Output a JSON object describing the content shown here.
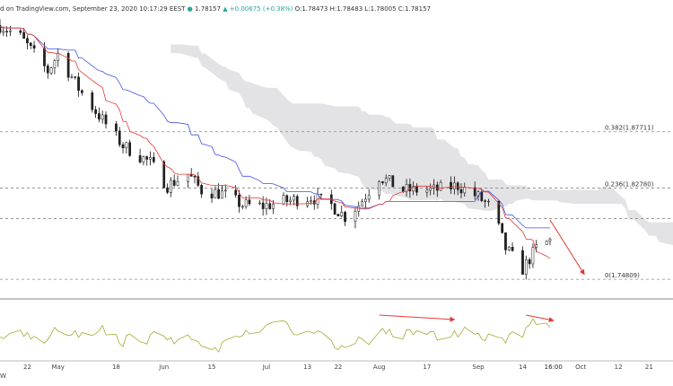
{
  "header": {
    "prefix": "d on TradingView.com, September 23, 2020 10:17:29 EEST",
    "symbol_glyph": "●",
    "price": "1.78157",
    "change": "▲ +0.00675 (+0.38%)",
    "ohlc": "O:1.78473 H:1.78483 L:1.78005 C:1.78157"
  },
  "watermark": "W",
  "colors": {
    "bull": "#26a69a",
    "bear": "#222222",
    "candle": "#111111",
    "tenkan": "#e53935",
    "kijun": "#3f51e8",
    "cloud": "#d9d9dc",
    "oscillator": "#a8a832",
    "arrow": "#e53935",
    "fib": "#888888",
    "separator": "#888888"
  },
  "chart_data": {
    "type": "candlestick",
    "title": "",
    "x_axis": {
      "ticks": [
        "22",
        "May",
        "18",
        "Jun",
        "15",
        "Jul",
        "13",
        "22",
        "Aug",
        "17",
        "Sep",
        "14",
        "16:00",
        "Oct",
        "12",
        "21"
      ],
      "highlighted": "16:00"
    },
    "fib_levels": [
      {
        "label": "0.382(1.87711)",
        "value": 1.87711
      },
      {
        "label": "0.236(1.82780)",
        "value": 1.8278
      },
      {
        "label": "0(1.74809)",
        "value": 1.74809
      }
    ],
    "reference_line": 1.8012,
    "ylim": [
      1.7309,
      1.9766
    ],
    "price_trend": {
      "dates": [
        "2020-04-14",
        "2020-04-20",
        "2020-04-28",
        "2020-05-01",
        "2020-05-07",
        "2020-05-12",
        "2020-05-20",
        "2020-05-28",
        "2020-06-02",
        "2020-06-08",
        "2020-06-12",
        "2020-06-18",
        "2020-06-24",
        "2020-06-30",
        "2020-07-06",
        "2020-07-14",
        "2020-07-20",
        "2020-07-24",
        "2020-07-28",
        "2020-08-03",
        "2020-08-10",
        "2020-08-19",
        "2020-08-26",
        "2020-09-01",
        "2020-09-05",
        "2020-09-09",
        "2020-09-14",
        "2020-09-18",
        "2020-09-22"
      ],
      "close": [
        1.97,
        1.96,
        1.93,
        1.945,
        1.915,
        1.895,
        1.865,
        1.85,
        1.83,
        1.84,
        1.826,
        1.823,
        1.813,
        1.812,
        1.816,
        1.82,
        1.813,
        1.803,
        1.813,
        1.838,
        1.826,
        1.826,
        1.83,
        1.82,
        1.81,
        1.775,
        1.757,
        1.775,
        1.782
      ]
    },
    "candle_range": {
      "start": "2020-04-14",
      "end": "2020-09-22"
    },
    "oscillator": {
      "note": "momentum oscillator in lower pane",
      "range": [
        0,
        100
      ]
    },
    "annotations": [
      {
        "type": "arrow",
        "pane": "price",
        "from": "2020-09-22",
        "to": "2020-10-02",
        "direction": "down"
      },
      {
        "type": "arrow",
        "pane": "oscillator",
        "from": "2020-08-03",
        "to": "2020-08-25",
        "direction": "right"
      },
      {
        "type": "arrow",
        "pane": "oscillator",
        "from": "2020-09-15",
        "to": "2020-09-23",
        "direction": "right"
      }
    ],
    "indicators": [
      "Tenkan-sen",
      "Kijun-sen",
      "Ichimoku cloud"
    ]
  }
}
